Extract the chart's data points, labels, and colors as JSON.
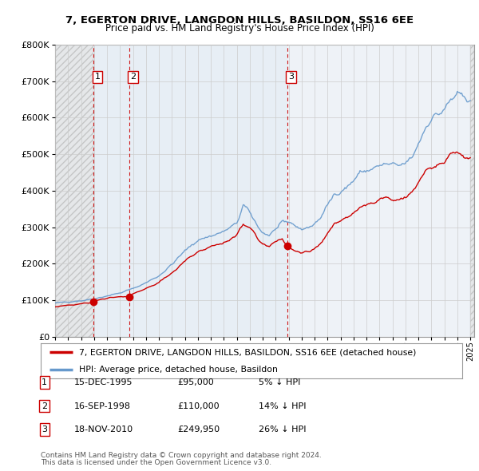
{
  "title": "7, EGERTON DRIVE, LANGDON HILLS, BASILDON, SS16 6EE",
  "subtitle": "Price paid vs. HM Land Registry's House Price Index (HPI)",
  "sale_label_date_nums": [
    1995.96,
    1998.71,
    2010.88
  ],
  "sale_prices": [
    95000,
    110000,
    249950
  ],
  "sale_labels": [
    "1",
    "2",
    "3"
  ],
  "legend_line1": "7, EGERTON DRIVE, LANGDON HILLS, BASILDON, SS16 6EE (detached house)",
  "legend_line2": "HPI: Average price, detached house, Basildon",
  "table_rows": [
    [
      "1",
      "15-DEC-1995",
      "£95,000",
      "5% ↓ HPI"
    ],
    [
      "2",
      "16-SEP-1998",
      "£110,000",
      "14% ↓ HPI"
    ],
    [
      "3",
      "18-NOV-2010",
      "£249,950",
      "26% ↓ HPI"
    ]
  ],
  "footer1": "Contains HM Land Registry data © Crown copyright and database right 2024.",
  "footer2": "This data is licensed under the Open Government Licence v3.0.",
  "ylim": [
    0,
    800000
  ],
  "yticks": [
    0,
    100000,
    200000,
    300000,
    400000,
    500000,
    600000,
    700000,
    800000
  ],
  "ytick_labels": [
    "£0",
    "£100K",
    "£200K",
    "£300K",
    "£400K",
    "£500K",
    "£600K",
    "£700K",
    "£800K"
  ],
  "xlim_start": 1993.0,
  "xlim_end": 2025.3,
  "hpi_line_color": "#6699cc",
  "price_line_color": "#cc0000",
  "bg_color": "#ffffff",
  "plot_bg_color": "#eef2f7",
  "grid_color": "#cccccc",
  "sale_marker_color": "#cc0000",
  "dashed_line_color": "#cc0000",
  "hatch_bg_color": "#e8e8e8",
  "shade_bg_color": "#dce8f4"
}
